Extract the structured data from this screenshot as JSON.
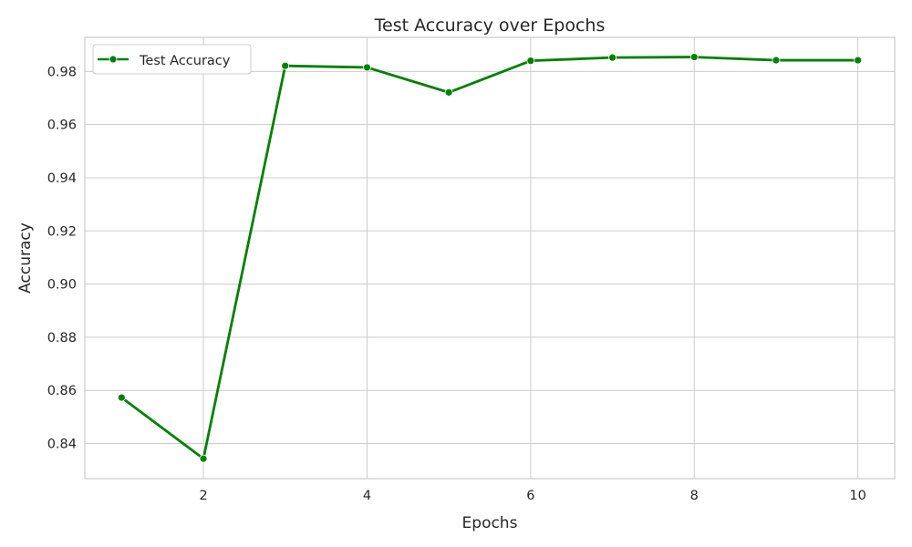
{
  "chart_data": {
    "type": "line",
    "title": "Test Accuracy over Epochs",
    "xlabel": "Epochs",
    "ylabel": "Accuracy",
    "xlim": [
      0.55,
      10.45
    ],
    "ylim": [
      0.8268,
      0.9928
    ],
    "xticks": [
      2,
      4,
      6,
      8,
      10
    ],
    "xtick_labels": [
      "2",
      "4",
      "6",
      "8",
      "10"
    ],
    "yticks": [
      0.84,
      0.86,
      0.88,
      0.9,
      0.92,
      0.94,
      0.96,
      0.98
    ],
    "ytick_labels": [
      "0.84",
      "0.86",
      "0.88",
      "0.90",
      "0.92",
      "0.94",
      "0.96",
      "0.98"
    ],
    "grid": true,
    "legend_position": "top-left",
    "series": [
      {
        "name": "Test Accuracy",
        "color": "#008000",
        "marker": "circle",
        "x": [
          1,
          2,
          3,
          4,
          5,
          6,
          7,
          8,
          9,
          10
        ],
        "y": [
          0.8573,
          0.8343,
          0.9821,
          0.9815,
          0.9721,
          0.984,
          0.9852,
          0.9854,
          0.9842,
          0.9842
        ]
      }
    ]
  }
}
